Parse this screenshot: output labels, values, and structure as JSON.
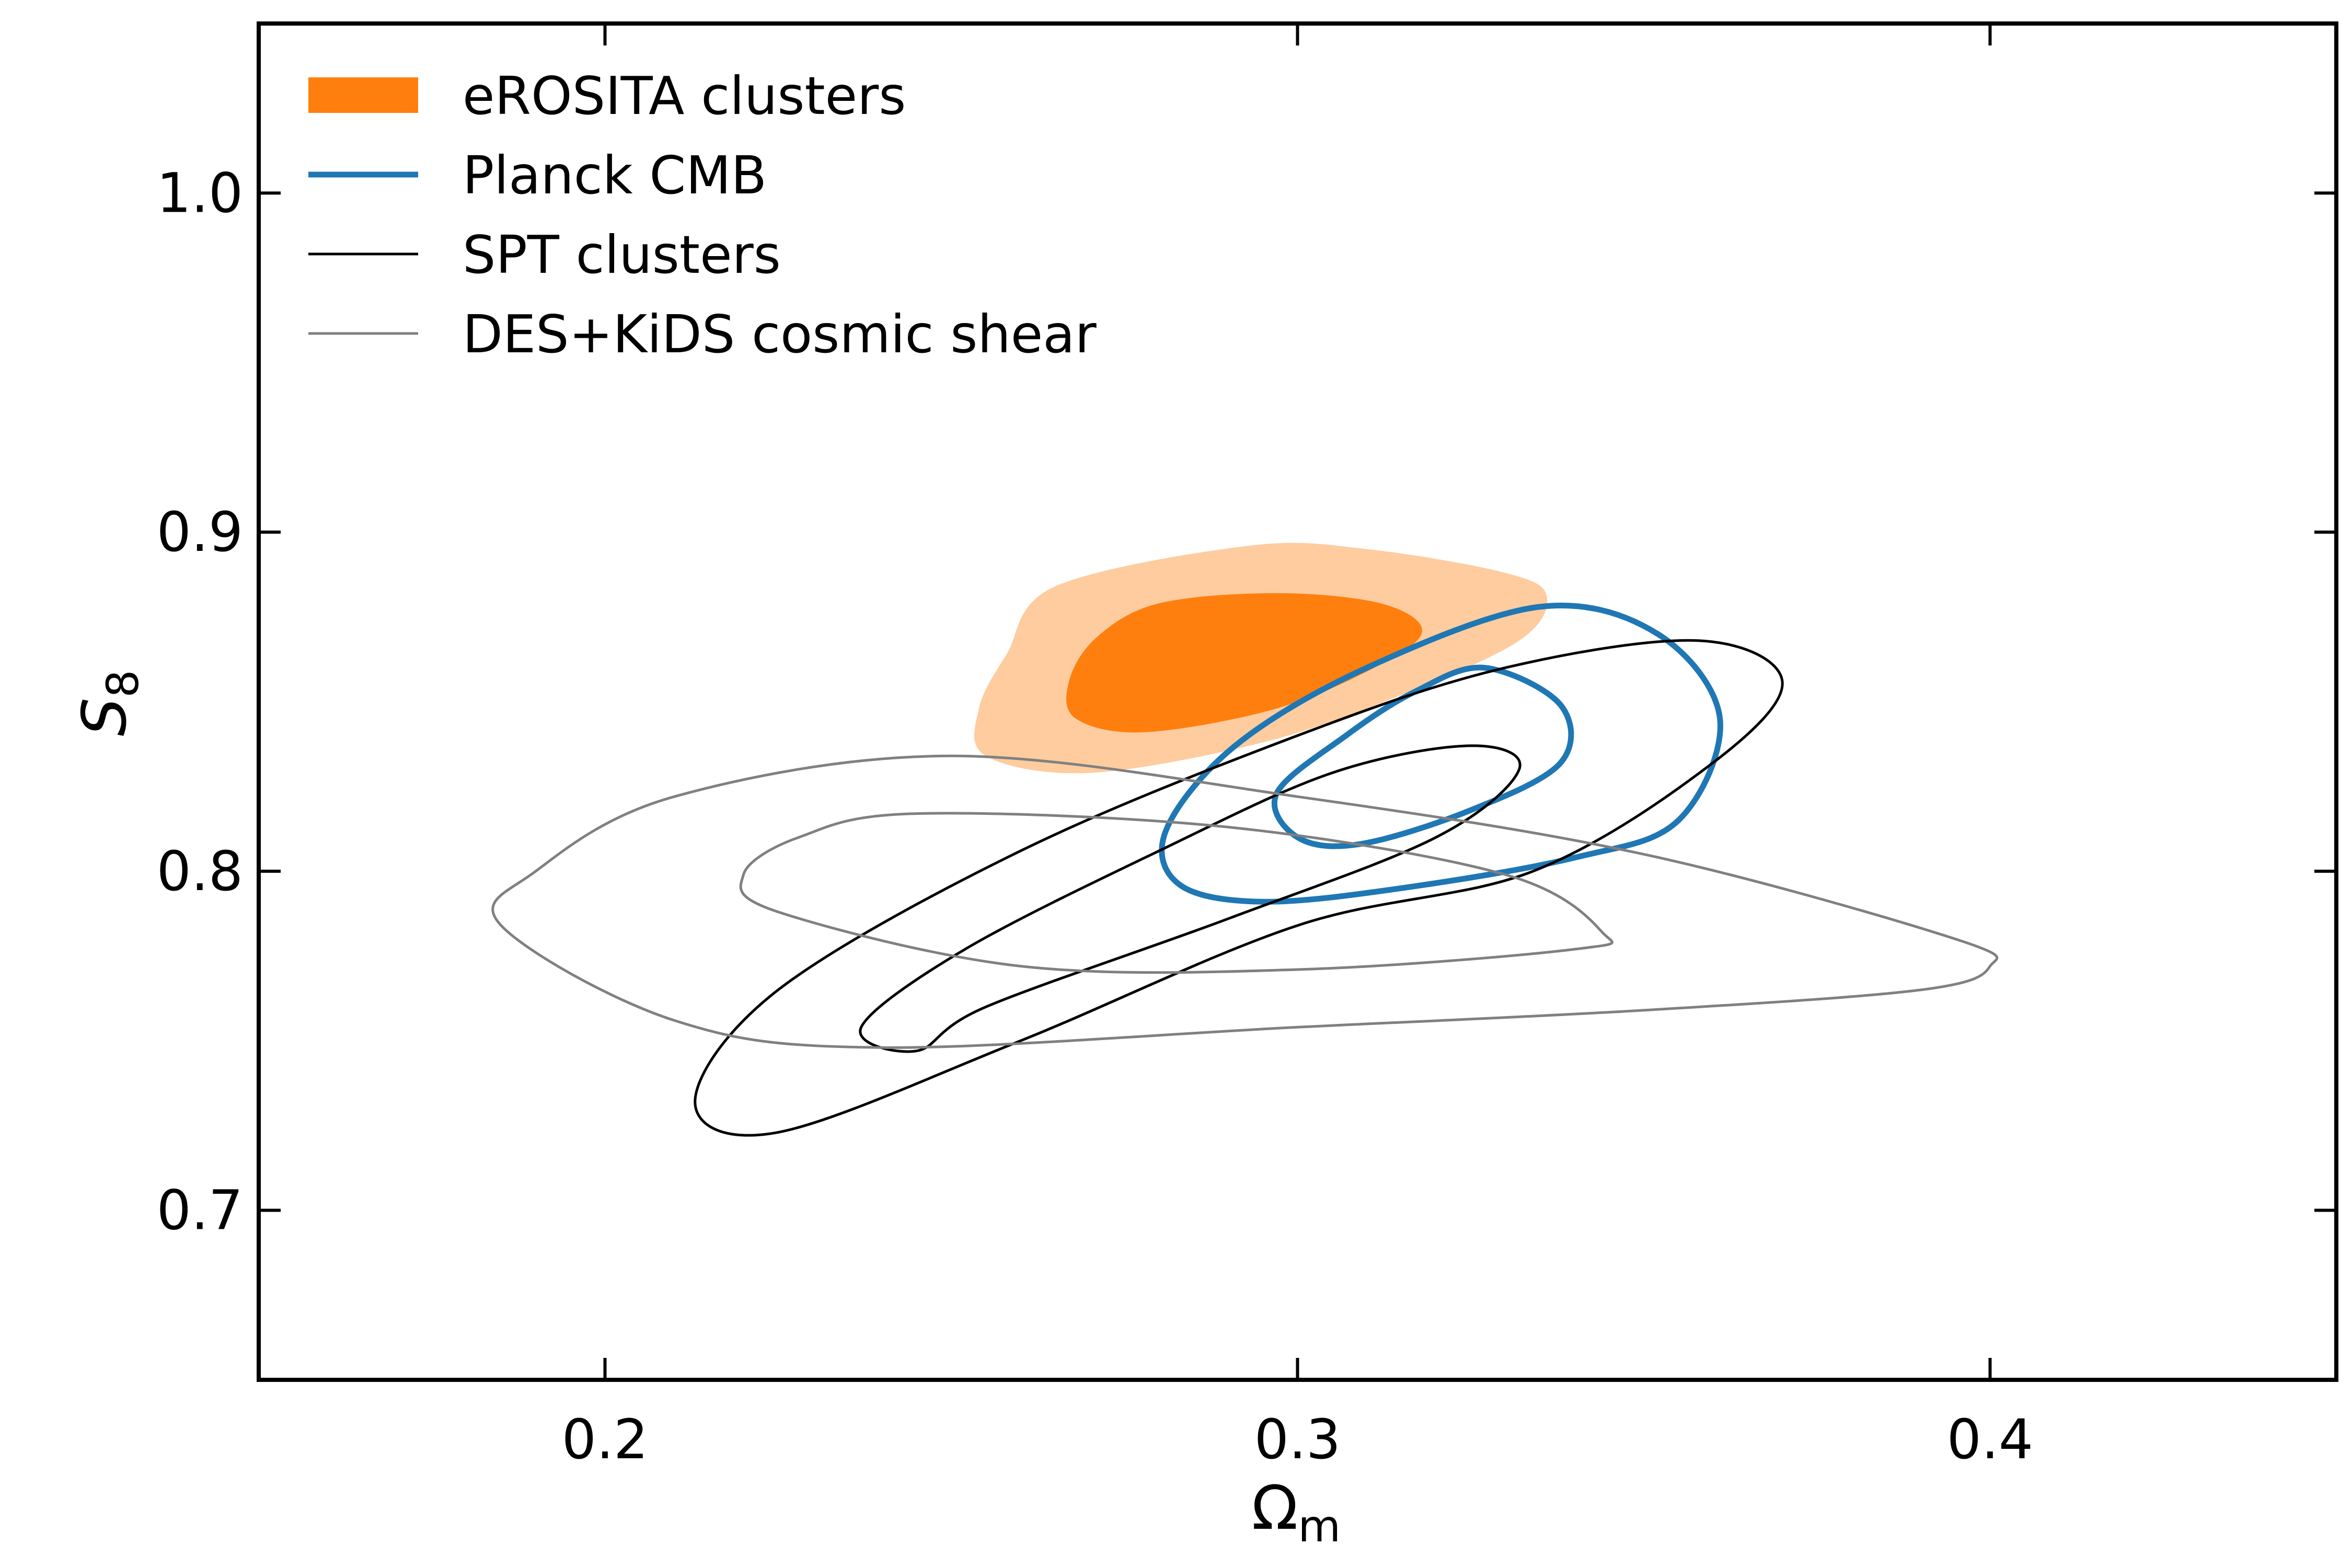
{
  "chart_data": {
    "type": "contour",
    "xlabel": "Ωm",
    "ylabel": "S8",
    "xlim": [
      0.15,
      0.45
    ],
    "ylim": [
      0.65,
      1.05
    ],
    "x_ticks": [
      "0.2",
      "0.3",
      "0.4"
    ],
    "y_ticks": [
      "0.7",
      "0.8",
      "0.9",
      "1.0"
    ],
    "x_tick_values": [
      0.2,
      0.3,
      0.4
    ],
    "y_tick_values": [
      0.7,
      0.8,
      0.9,
      1.0
    ],
    "legend_position": "top-left",
    "legend": [
      {
        "label": "eROSITA clusters",
        "style": "filled",
        "color": "#ff7f0e"
      },
      {
        "label": "Planck CMB",
        "style": "line",
        "color": "#1f77b4"
      },
      {
        "label": "SPT clusters",
        "style": "line",
        "color": "#000000"
      },
      {
        "label": "DES+KiDS cosmic shear",
        "style": "line",
        "color": "#808080"
      }
    ],
    "series": [
      {
        "name": "eROSITA clusters",
        "color": "#ff7f0e",
        "filled": true,
        "contours": [
          {
            "level": "95%",
            "opacity": 0.4,
            "points": [
              [
                0.265,
                0.884
              ],
              [
                0.293,
                0.896
              ],
              [
                0.31,
                0.895
              ],
              [
                0.33,
                0.888
              ],
              [
                0.336,
                0.881
              ],
              [
                0.332,
                0.868
              ],
              [
                0.315,
                0.852
              ],
              [
                0.295,
                0.838
              ],
              [
                0.27,
                0.829
              ],
              [
                0.255,
                0.834
              ],
              [
                0.254,
                0.848
              ],
              [
                0.258,
                0.864
              ]
            ]
          },
          {
            "level": "68%",
            "opacity": 1.0,
            "points": [
              [
                0.28,
                0.879
              ],
              [
                0.297,
                0.882
              ],
              [
                0.312,
                0.879
              ],
              [
                0.318,
                0.871
              ],
              [
                0.312,
                0.861
              ],
              [
                0.297,
                0.848
              ],
              [
                0.278,
                0.841
              ],
              [
                0.268,
                0.845
              ],
              [
                0.267,
                0.856
              ],
              [
                0.271,
                0.869
              ]
            ]
          }
        ]
      },
      {
        "name": "Planck CMB",
        "color": "#1f77b4",
        "filled": false,
        "contours": [
          {
            "level": "95%",
            "points": [
              [
                0.335,
                0.878
              ],
              [
                0.352,
                0.87
              ],
              [
                0.361,
                0.845
              ],
              [
                0.355,
                0.815
              ],
              [
                0.34,
                0.804
              ],
              [
                0.315,
                0.795
              ],
              [
                0.295,
                0.791
              ],
              [
                0.283,
                0.796
              ],
              [
                0.281,
                0.812
              ],
              [
                0.291,
                0.837
              ],
              [
                0.31,
                0.86
              ]
            ]
          },
          {
            "level": "68%",
            "points": [
              [
                0.327,
                0.86
              ],
              [
                0.338,
                0.849
              ],
              [
                0.338,
                0.832
              ],
              [
                0.325,
                0.818
              ],
              [
                0.309,
                0.808
              ],
              [
                0.3,
                0.81
              ],
              [
                0.297,
                0.823
              ],
              [
                0.307,
                0.84
              ],
              [
                0.317,
                0.853
              ]
            ]
          }
        ]
      },
      {
        "name": "SPT clusters",
        "color": "#000000",
        "filled": false,
        "contours": [
          {
            "level": "95%",
            "points": [
              [
                0.358,
                0.868
              ],
              [
                0.37,
                0.856
              ],
              [
                0.36,
                0.832
              ],
              [
                0.334,
                0.8
              ],
              [
                0.3,
                0.784
              ],
              [
                0.26,
                0.75
              ],
              [
                0.225,
                0.723
              ],
              [
                0.213,
                0.732
              ],
              [
                0.225,
                0.765
              ],
              [
                0.26,
                0.806
              ],
              [
                0.3,
                0.84
              ],
              [
                0.33,
                0.86
              ]
            ]
          },
          {
            "level": "68%",
            "points": [
              [
                0.325,
                0.837
              ],
              [
                0.332,
                0.83
              ],
              [
                0.32,
                0.81
              ],
              [
                0.29,
                0.786
              ],
              [
                0.255,
                0.76
              ],
              [
                0.245,
                0.747
              ],
              [
                0.237,
                0.754
              ],
              [
                0.252,
                0.777
              ],
              [
                0.28,
                0.806
              ],
              [
                0.305,
                0.829
              ]
            ]
          }
        ]
      },
      {
        "name": "DES+KiDS cosmic shear",
        "color": "#808080",
        "filled": false,
        "contours": [
          {
            "level": "95%",
            "points": [
              [
                0.25,
                0.834
              ],
              [
                0.3,
                0.822
              ],
              [
                0.35,
                0.805
              ],
              [
                0.395,
                0.78
              ],
              [
                0.4,
                0.772
              ],
              [
                0.39,
                0.765
              ],
              [
                0.35,
                0.759
              ],
              [
                0.3,
                0.754
              ],
              [
                0.24,
                0.748
              ],
              [
                0.21,
                0.756
              ],
              [
                0.185,
                0.784
              ],
              [
                0.19,
                0.8
              ],
              [
                0.21,
                0.822
              ]
            ]
          },
          {
            "level": "68%",
            "points": [
              [
                0.245,
                0.817
              ],
              [
                0.29,
                0.813
              ],
              [
                0.33,
                0.799
              ],
              [
                0.344,
                0.782
              ],
              [
                0.34,
                0.777
              ],
              [
                0.3,
                0.771
              ],
              [
                0.26,
                0.772
              ],
              [
                0.225,
                0.788
              ],
              [
                0.22,
                0.799
              ],
              [
                0.228,
                0.81
              ]
            ]
          }
        ]
      }
    ]
  }
}
